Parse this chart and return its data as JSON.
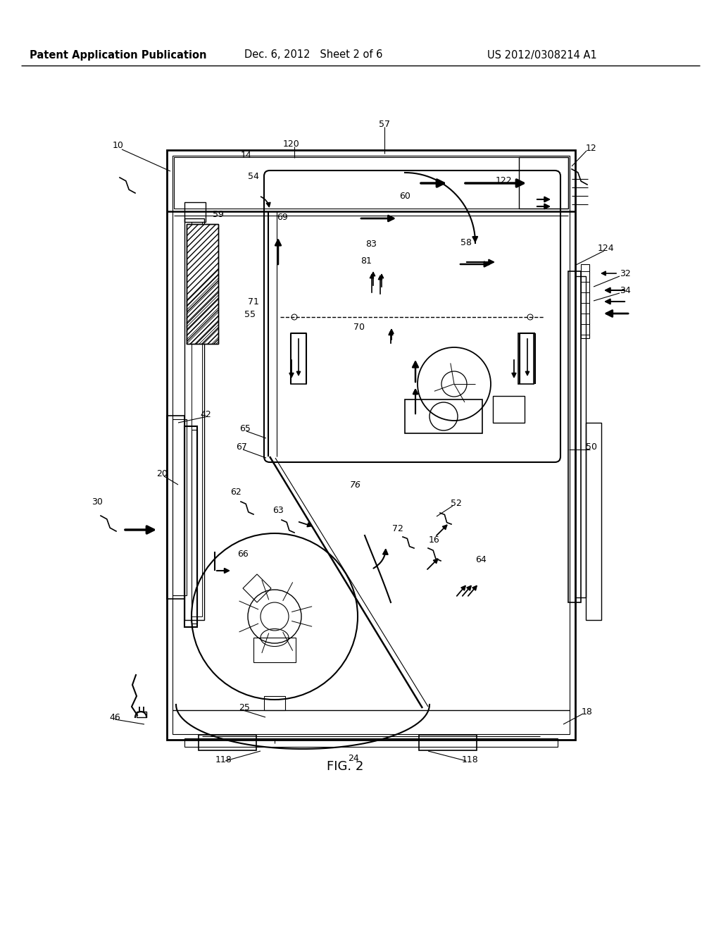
{
  "bg_color": "#ffffff",
  "lc": "#000000",
  "header_left": "Patent Application Publication",
  "header_center": "Dec. 6, 2012   Sheet 2 of 6",
  "header_right": "US 2012/0308214 A1",
  "figure_label": "FIG. 2",
  "hdr_fs": 10.5,
  "lbl_fs": 9.0,
  "fig_fs": 13.0
}
